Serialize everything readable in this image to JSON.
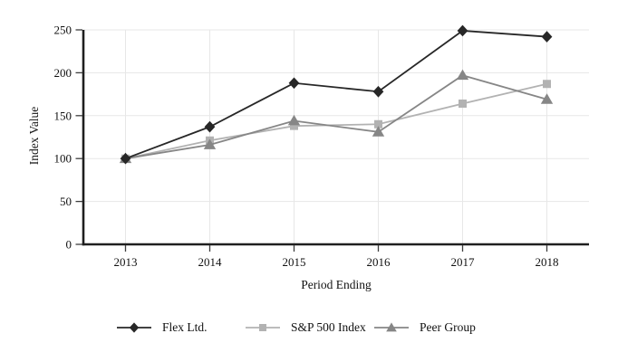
{
  "chart_data": {
    "type": "line",
    "categories": [
      "2013",
      "2014",
      "2015",
      "2016",
      "2017",
      "2018"
    ],
    "series": [
      {
        "name": "Flex Ltd.",
        "marker": "diamond",
        "color": "#272727",
        "z": 3,
        "values": [
          100,
          137,
          188,
          178,
          249,
          242
        ]
      },
      {
        "name": "S&P 500 Index",
        "marker": "square",
        "color": "#b2b2b2",
        "z": 1,
        "values": [
          100,
          121,
          138,
          140,
          164,
          187
        ]
      },
      {
        "name": "Peer Group",
        "marker": "triangle",
        "color": "#868686",
        "z": 2,
        "values": [
          100,
          116,
          144,
          131,
          197,
          169
        ]
      }
    ],
    "xlabel": "Period Ending",
    "ylabel": "Index Value",
    "ylim": [
      0,
      250
    ],
    "yticks": [
      0,
      50,
      100,
      150,
      200,
      250
    ],
    "grid": true,
    "legend_position": "bottom",
    "colors": {
      "axis": "#1f1f1f",
      "tick": "#3d3d3d",
      "grid": "#e7e7e7",
      "text": "#111111",
      "background": "#ffffff"
    }
  }
}
